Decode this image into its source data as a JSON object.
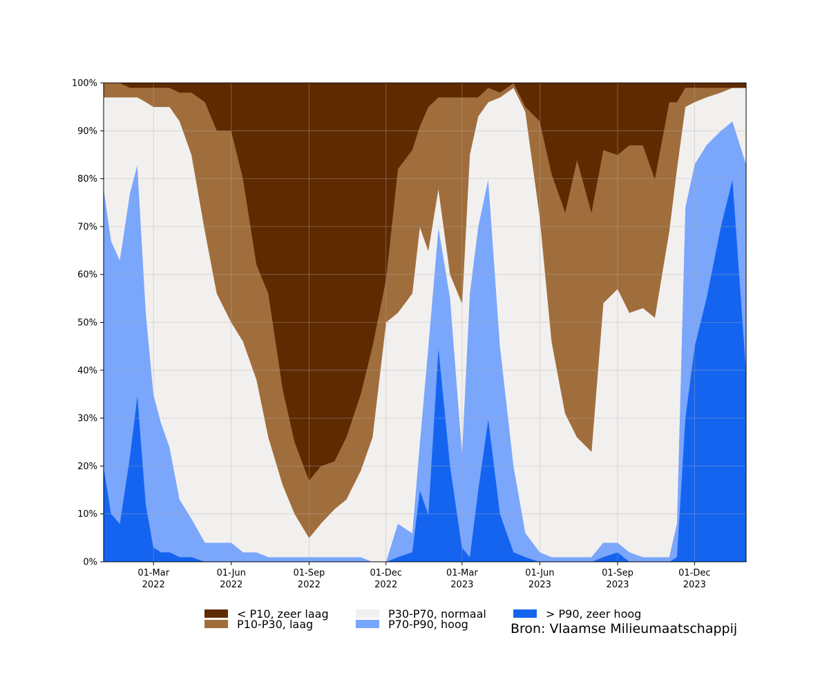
{
  "chart_data": {
    "type": "area",
    "stacked": true,
    "normalized_percent": true,
    "title": "",
    "xlabel": "",
    "ylabel": "",
    "x_range": [
      "2022-01-01",
      "2024-01-31"
    ],
    "ylim": [
      0,
      100
    ],
    "y_ticks": [
      0,
      10,
      20,
      30,
      40,
      50,
      60,
      70,
      80,
      90,
      100
    ],
    "y_tick_labels": [
      "0%",
      "10%",
      "20%",
      "30%",
      "40%",
      "50%",
      "60%",
      "70%",
      "80%",
      "90%",
      "100%"
    ],
    "x_ticks": [
      {
        "date": "2022-03-01",
        "line1": "01-Mar",
        "line2": "2022"
      },
      {
        "date": "2022-06-01",
        "line1": "01-Jun",
        "line2": "2022"
      },
      {
        "date": "2022-09-01",
        "line1": "01-Sep",
        "line2": "2022"
      },
      {
        "date": "2022-12-01",
        "line1": "01-Dec",
        "line2": "2022"
      },
      {
        "date": "2023-03-01",
        "line1": "01-Mar",
        "line2": "2023"
      },
      {
        "date": "2023-06-01",
        "line1": "01-Jun",
        "line2": "2023"
      },
      {
        "date": "2023-09-01",
        "line1": "01-Sep",
        "line2": "2023"
      },
      {
        "date": "2023-12-01",
        "line1": "01-Dec",
        "line2": "2023"
      }
    ],
    "grid": true,
    "legend_position": "bottom",
    "dates": [
      "2022-01-01",
      "2022-01-10",
      "2022-01-20",
      "2022-02-01",
      "2022-02-10",
      "2022-02-20",
      "2022-03-01",
      "2022-03-10",
      "2022-03-20",
      "2022-04-01",
      "2022-04-15",
      "2022-05-01",
      "2022-05-15",
      "2022-06-01",
      "2022-06-15",
      "2022-07-01",
      "2022-07-15",
      "2022-08-01",
      "2022-08-15",
      "2022-09-01",
      "2022-09-15",
      "2022-10-01",
      "2022-10-15",
      "2022-11-01",
      "2022-11-15",
      "2022-12-01",
      "2022-12-15",
      "2023-01-01",
      "2023-01-10",
      "2023-01-20",
      "2023-02-01",
      "2023-02-15",
      "2023-03-01",
      "2023-03-10",
      "2023-03-20",
      "2023-04-01",
      "2023-04-15",
      "2023-05-01",
      "2023-05-15",
      "2023-06-01",
      "2023-06-15",
      "2023-07-01",
      "2023-07-15",
      "2023-08-01",
      "2023-08-15",
      "2023-09-01",
      "2023-09-15",
      "2023-10-01",
      "2023-10-15",
      "2023-11-01",
      "2023-11-10",
      "2023-11-20",
      "2023-12-01",
      "2023-12-15",
      "2024-01-01",
      "2024-01-15",
      "2024-01-31"
    ],
    "series": [
      {
        "name": "> P90, zeer hoog",
        "color": "#1464f0",
        "values": [
          20,
          10,
          8,
          22,
          35,
          12,
          3,
          2,
          2,
          1,
          1,
          0,
          0,
          0,
          0,
          0,
          0,
          0,
          0,
          0,
          0,
          0,
          0,
          0,
          0,
          0,
          1,
          2,
          15,
          10,
          45,
          20,
          3,
          1,
          15,
          30,
          10,
          2,
          1,
          0,
          0,
          0,
          0,
          0,
          1,
          2,
          0,
          0,
          0,
          0,
          1,
          30,
          45,
          55,
          70,
          80,
          40
        ]
      },
      {
        "name": "P70-P90, hoog",
        "color": "#7aa6fc",
        "values": [
          58,
          57,
          55,
          55,
          48,
          40,
          32,
          27,
          22,
          12,
          8,
          4,
          4,
          4,
          2,
          2,
          1,
          1,
          1,
          1,
          1,
          1,
          1,
          1,
          0,
          0,
          7,
          4,
          10,
          35,
          25,
          35,
          20,
          55,
          55,
          50,
          35,
          18,
          5,
          2,
          1,
          1,
          1,
          1,
          3,
          2,
          2,
          1,
          1,
          1,
          7,
          44,
          38,
          32,
          20,
          12,
          43
        ]
      },
      {
        "name": "P30-P70, normaal",
        "color": "#f2f0ef",
        "values": [
          19,
          30,
          34,
          20,
          14,
          44,
          60,
          66,
          71,
          79,
          76,
          65,
          52,
          46,
          44,
          36,
          25,
          15,
          9,
          4,
          7,
          10,
          12,
          18,
          26,
          50,
          44,
          50,
          45,
          20,
          8,
          5,
          31,
          29,
          23,
          16,
          52,
          79,
          88,
          70,
          45,
          30,
          25,
          22,
          50,
          53,
          50,
          52,
          50,
          68,
          74,
          21,
          13,
          10,
          8,
          7,
          16
        ]
      },
      {
        "name": "P10-P30, laag",
        "color": "#a06e3c",
        "values": [
          3,
          3,
          3,
          2,
          2,
          3,
          4,
          4,
          4,
          6,
          13,
          27,
          34,
          40,
          34,
          24,
          30,
          20,
          15,
          12,
          12,
          10,
          13,
          16,
          19,
          9,
          30,
          30,
          21,
          30,
          19,
          37,
          43,
          12,
          4,
          3,
          1,
          1,
          1,
          20,
          35,
          42,
          58,
          50,
          32,
          28,
          35,
          34,
          29,
          27,
          14,
          4,
          3,
          2,
          1,
          0,
          0
        ]
      },
      {
        "name": "< P10, zeer laag",
        "color": "#5f2a00",
        "values": [
          0,
          0,
          0,
          1,
          1,
          1,
          1,
          1,
          1,
          2,
          2,
          4,
          10,
          10,
          20,
          38,
          44,
          64,
          75,
          83,
          80,
          79,
          74,
          65,
          55,
          41,
          18,
          14,
          9,
          5,
          3,
          3,
          3,
          3,
          3,
          1,
          2,
          0,
          5,
          8,
          19,
          27,
          16,
          27,
          14,
          15,
          13,
          13,
          20,
          4,
          4,
          1,
          1,
          1,
          1,
          1,
          1
        ]
      }
    ],
    "legend_order": [
      "< P10, zeer laag",
      "P10-P30, laag",
      "P30-P70, normaal",
      "P70-P90, hoog",
      "> P90, zeer hoog"
    ],
    "source_text": "Bron: Vlaamse Milieumaatschappij"
  }
}
